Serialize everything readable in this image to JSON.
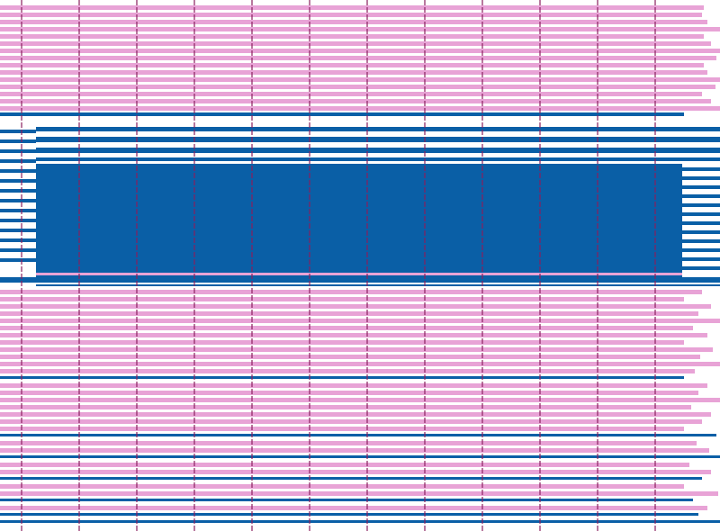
{
  "palette": {
    "background": "#ffffff",
    "pink": "#e8a3d6",
    "blue": "#0a5fa6",
    "rule": "#8a1f5e"
  }
}
